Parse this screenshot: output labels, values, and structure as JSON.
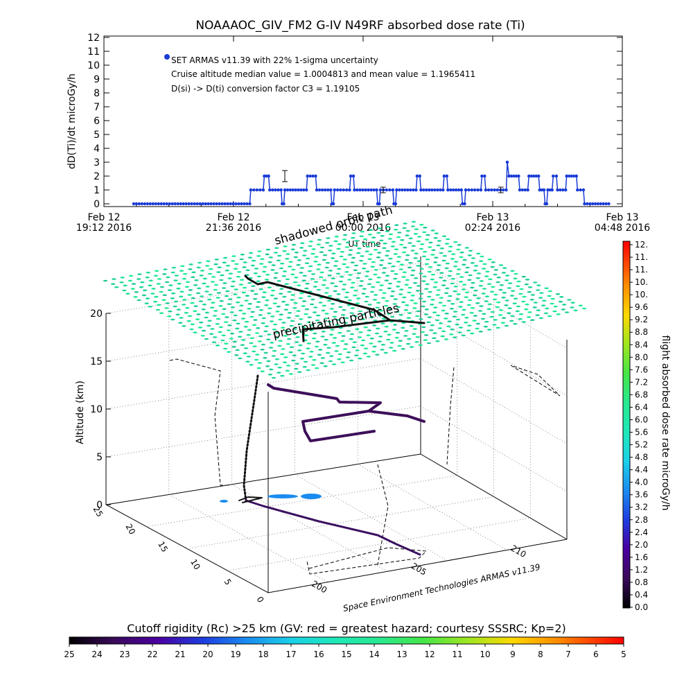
{
  "chart_data": [
    {
      "type": "line",
      "title": "NOAAAOC_GIV_FM2 G-IV   N49RF  absorbed dose rate (Ti)",
      "ylabel": "dD(Ti)/dt microGy/h",
      "xlabel": "UT time",
      "ylim": [
        0,
        12
      ],
      "y_ticks": [
        "0",
        "1",
        "2",
        "3",
        "4",
        "5",
        "6",
        "7",
        "8",
        "9",
        "10",
        "11",
        "12"
      ],
      "x_ticks": [
        {
          "line1": "Feb 12",
          "line2": "19:12 2016"
        },
        {
          "line1": "Feb 12",
          "line2": "21:36 2016"
        },
        {
          "line1": "Feb 13",
          "line2": "00:00 2016"
        },
        {
          "line1": "Feb 13",
          "line2": "02:24 2016"
        },
        {
          "line1": "Feb 13",
          "line2": "04:48 2016"
        }
      ],
      "x_hours_range": [
        0,
        9.6
      ],
      "annotations": [
        "SET ARMAS v11.39 with 22% 1-sigma uncertainty",
        "Cruise altitude median value = 1.0004813 and mean value = 1.1965411",
        "D(si) -> D(ti) conversion factor C3 = 1.19105"
      ],
      "legend_marker": "blue dot",
      "series": [
        {
          "color": "#1a3bd6",
          "segments": [
            [
              0.55,
              0
            ],
            [
              2.7,
              0
            ],
            [
              2.72,
              1
            ],
            [
              2.95,
              1
            ],
            [
              2.97,
              2
            ],
            [
              3.05,
              2
            ],
            [
              3.07,
              1
            ],
            [
              3.28,
              1
            ],
            [
              3.3,
              0
            ],
            [
              3.33,
              0
            ],
            [
              3.35,
              1
            ],
            [
              3.75,
              1
            ],
            [
              3.77,
              2
            ],
            [
              3.92,
              2
            ],
            [
              3.94,
              1
            ],
            [
              4.2,
              1
            ],
            [
              4.22,
              0
            ],
            [
              4.25,
              0
            ],
            [
              4.27,
              1
            ],
            [
              4.55,
              1
            ],
            [
              4.57,
              2
            ],
            [
              4.62,
              2
            ],
            [
              4.64,
              1
            ],
            [
              5.05,
              1
            ],
            [
              5.07,
              0
            ],
            [
              5.1,
              0
            ],
            [
              5.12,
              1
            ],
            [
              5.35,
              1
            ],
            [
              5.37,
              0
            ],
            [
              5.4,
              0
            ],
            [
              5.42,
              1
            ],
            [
              5.78,
              1
            ],
            [
              5.8,
              2
            ],
            [
              5.85,
              2
            ],
            [
              5.87,
              1
            ],
            [
              6.28,
              1
            ],
            [
              6.3,
              2
            ],
            [
              6.35,
              2
            ],
            [
              6.37,
              1
            ],
            [
              6.62,
              1
            ],
            [
              6.64,
              0
            ],
            [
              6.68,
              0
            ],
            [
              6.7,
              1
            ],
            [
              6.98,
              1
            ],
            [
              7.0,
              2
            ],
            [
              7.05,
              2
            ],
            [
              7.07,
              1
            ],
            [
              7.45,
              1
            ],
            [
              7.47,
              3
            ],
            [
              7.5,
              2
            ],
            [
              7.68,
              2
            ],
            [
              7.7,
              1
            ],
            [
              7.85,
              1
            ],
            [
              7.87,
              2
            ],
            [
              8.05,
              2
            ],
            [
              8.07,
              1
            ],
            [
              8.15,
              1
            ],
            [
              8.17,
              0
            ],
            [
              8.2,
              0
            ],
            [
              8.22,
              1
            ],
            [
              8.3,
              1
            ],
            [
              8.32,
              2
            ],
            [
              8.38,
              2
            ],
            [
              8.4,
              1
            ],
            [
              8.55,
              1
            ],
            [
              8.57,
              2
            ],
            [
              8.75,
              2
            ],
            [
              8.77,
              1
            ],
            [
              8.88,
              1
            ],
            [
              8.9,
              0
            ],
            [
              9.35,
              0
            ]
          ]
        }
      ],
      "error_bars": [
        {
          "x": 3.35,
          "y": 2,
          "err": 0.4
        },
        {
          "x": 5.17,
          "y": 1,
          "err": 0.2
        },
        {
          "x": 7.35,
          "y": 1,
          "err": 0.2
        }
      ]
    },
    {
      "type": "scatter",
      "title": "",
      "zlabel": "Altitude (km)",
      "z_ticks": [
        "0",
        "5",
        "10",
        "15",
        "20"
      ],
      "zlim": [
        0,
        20
      ],
      "lat_ticks": [
        "0",
        "5",
        "10",
        "15",
        "20",
        "25"
      ],
      "lon_ticks": [
        "200",
        "205",
        "210"
      ],
      "annotations": [
        "shadowed orbit path",
        "precipitating particles"
      ],
      "footer_text": "Space Environment Technologies ARMAS v11.39",
      "colorbar_right": {
        "label": "flight absorbed dose rate microGy/h",
        "ticks": [
          "0.0",
          "0.4",
          "0.8",
          "1.2",
          "1.6",
          "2.0",
          "2.4",
          "2.8",
          "3.2",
          "3.6",
          "4.0",
          "4.4",
          "4.8",
          "5.2",
          "5.6",
          "6.0",
          "6.4",
          "6.8",
          "7.2",
          "7.6",
          "8.0",
          "8.4",
          "8.8",
          "9.2",
          "9.6",
          "10.",
          "10.",
          "11.",
          "11.",
          "12."
        ],
        "range": [
          0,
          12
        ]
      },
      "colorbar_bottom": {
        "label": "Cutoff rigidity (Rc) >25 km (GV: red = greatest hazard; courtesy SSSRC; Kp=2)",
        "ticks": [
          "25",
          "24",
          "23",
          "22",
          "21",
          "20",
          "19",
          "18",
          "17",
          "16",
          "15",
          "14",
          "13",
          "12",
          "11",
          "10",
          "9",
          "8",
          "7",
          "6",
          "5"
        ],
        "range": [
          25,
          5
        ]
      }
    }
  ]
}
